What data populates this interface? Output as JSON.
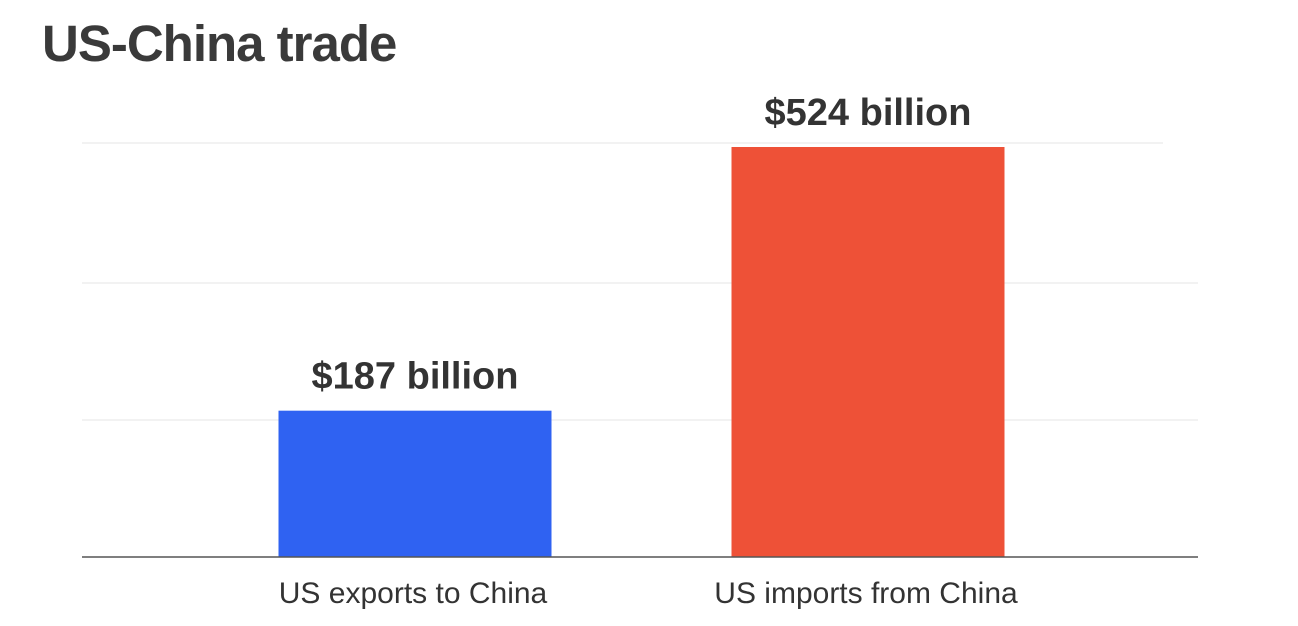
{
  "chart_data": {
    "type": "bar",
    "title": "US-China trade",
    "categories": [
      "US exports to China",
      "US imports from China"
    ],
    "values": [
      187,
      524
    ],
    "value_labels": [
      "$187 billion",
      "$524 billion"
    ],
    "ylim": [
      0,
      600
    ],
    "grid": true,
    "legend": "none",
    "xlabel": "",
    "ylabel": ""
  },
  "colors": {
    "bars": [
      "#2f62f2",
      "#ee5137"
    ],
    "text": "#333333",
    "gridline": "#e6e6e6",
    "axis": "#555555"
  }
}
